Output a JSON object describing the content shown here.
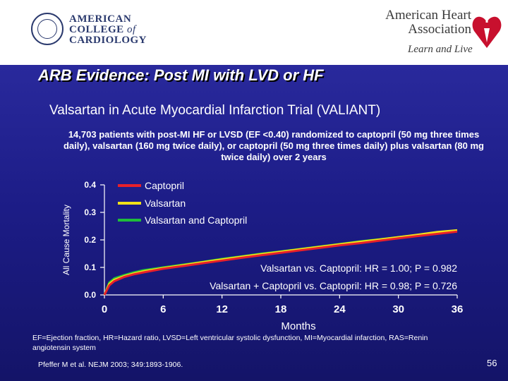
{
  "logos": {
    "acc": {
      "lines": [
        "AMERICAN",
        "COLLEGE",
        "of",
        "CARDIOLOGY"
      ]
    },
    "aha": {
      "name_line1": "American Heart",
      "name_line2": "Association",
      "tagline": "Learn and Live"
    }
  },
  "slide": {
    "title": "ARB Evidence: Post MI with LVD or HF",
    "subtitle": "Valsartan in Acute Myocardial Infarction Trial (VALIANT)",
    "description": "14,703 patients with post-MI HF or LVSD (EF <0.40) randomized to captopril (50 mg three times daily), valsartan (160 mg twice daily), or captopril (50 mg three times daily) plus valsartan (80 mg twice daily) over 2 years",
    "footnote": "EF=Ejection fraction, HR=Hazard ratio, LVSD=Left ventricular systolic dysfunction, MI=Myocardial infarction, RAS=Renin angiotensin system",
    "citation": "Pfeffer M et al. NEJM 2003; 349:1893-1906.",
    "page_number": "56"
  },
  "chart_data": {
    "type": "line",
    "xlabel": "Months",
    "ylabel": "All Cause Mortality",
    "x_ticks": [
      0,
      6,
      12,
      18,
      24,
      30,
      36
    ],
    "y_ticks": [
      "0.0",
      "0.1",
      "0.2",
      "0.3",
      "0.4"
    ],
    "xlim": [
      0,
      36
    ],
    "ylim": [
      0,
      0.4
    ],
    "series": [
      {
        "name": "Captopril",
        "color": "#e8202a",
        "x": [
          0,
          0.5,
          1,
          2,
          3,
          4,
          6,
          8,
          10,
          12,
          14,
          16,
          18,
          20,
          22,
          24,
          26,
          28,
          30,
          32,
          34,
          36
        ],
        "y": [
          0,
          0.035,
          0.05,
          0.065,
          0.075,
          0.082,
          0.095,
          0.105,
          0.115,
          0.125,
          0.135,
          0.144,
          0.153,
          0.162,
          0.171,
          0.18,
          0.188,
          0.197,
          0.206,
          0.214,
          0.222,
          0.23
        ]
      },
      {
        "name": "Valsartan",
        "color": "#f2e21a",
        "x": [
          0,
          0.5,
          1,
          2,
          3,
          4,
          6,
          8,
          10,
          12,
          14,
          16,
          18,
          20,
          22,
          24,
          26,
          28,
          30,
          32,
          34,
          36
        ],
        "y": [
          0,
          0.04,
          0.055,
          0.068,
          0.078,
          0.086,
          0.098,
          0.108,
          0.119,
          0.129,
          0.139,
          0.148,
          0.157,
          0.166,
          0.175,
          0.184,
          0.193,
          0.201,
          0.21,
          0.219,
          0.229,
          0.235
        ]
      },
      {
        "name": "Valsartan and Captopril",
        "color": "#1fbd3a",
        "x": [
          0,
          0.5,
          1,
          2,
          3,
          4,
          6,
          8,
          10,
          12,
          14,
          16,
          18,
          20,
          22,
          24,
          26,
          28,
          30,
          32,
          34,
          36
        ],
        "y": [
          0,
          0.045,
          0.06,
          0.072,
          0.082,
          0.09,
          0.1,
          0.11,
          0.12,
          0.131,
          0.14,
          0.15,
          0.158,
          0.167,
          0.176,
          0.185,
          0.194,
          0.202,
          0.21,
          0.218,
          0.226,
          0.233
        ]
      }
    ],
    "annotations": [
      "Valsartan vs. Captopril: HR = 1.00; P = 0.982",
      "Valsartan + Captopril vs. Captopril: HR = 0.98; P = 0.726"
    ]
  }
}
